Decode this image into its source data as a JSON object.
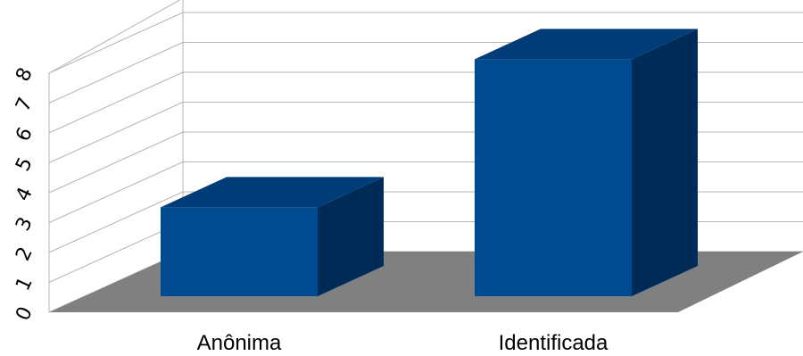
{
  "chart_data": {
    "type": "bar",
    "categories": [
      "Anônima",
      "Identificada"
    ],
    "values": [
      3,
      8
    ],
    "ylim": [
      0,
      8
    ],
    "yticks": [
      "0",
      "1",
      "2",
      "3",
      "4",
      "5",
      "6",
      "7",
      "8"
    ],
    "grid": true,
    "legend": "none",
    "colors": {
      "bar_front": "#004a8f",
      "bar_side": "#002b57",
      "bar_top": "#003d78",
      "floor": "#808080",
      "grid": "#b4b4b4"
    }
  }
}
